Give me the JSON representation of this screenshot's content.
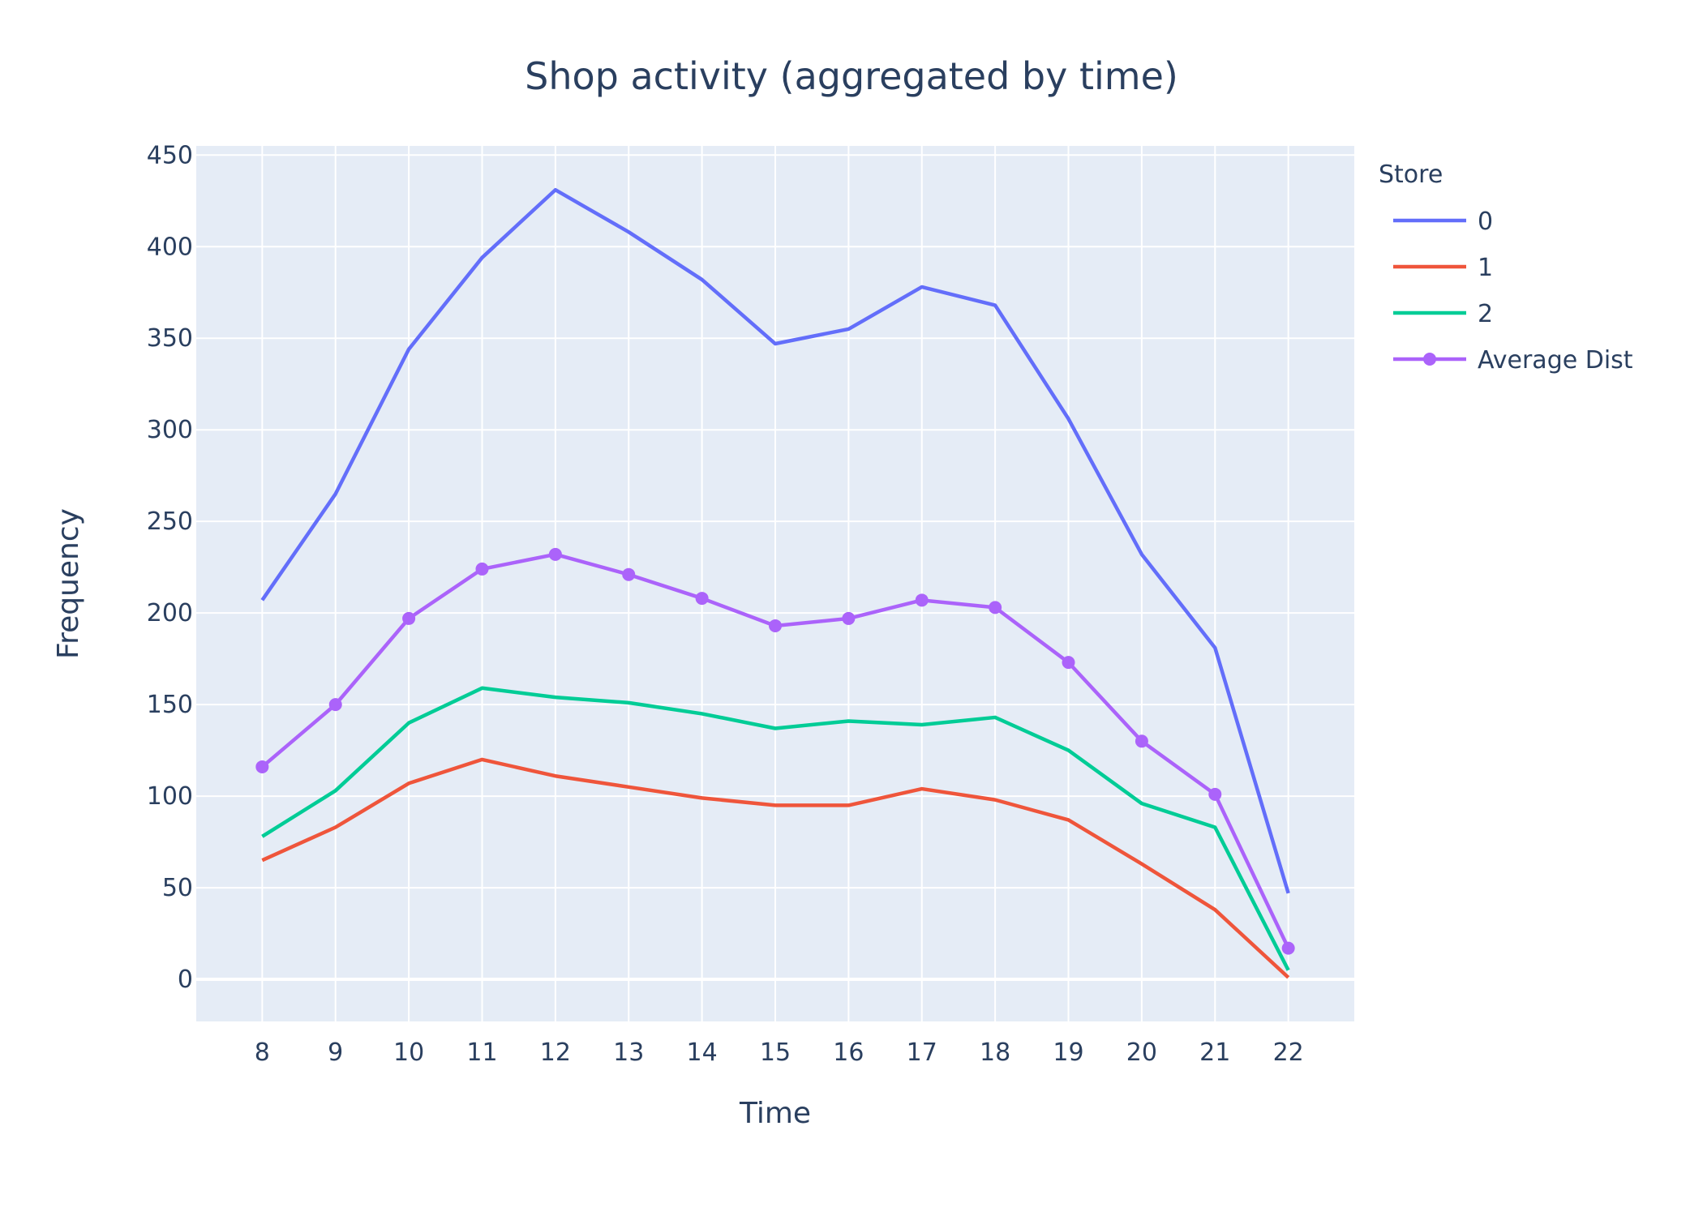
{
  "chart_data": {
    "type": "line",
    "title": "Shop activity (aggregated by time)",
    "xlabel": "Time",
    "ylabel": "Frequency",
    "x": [
      8,
      9,
      10,
      11,
      12,
      13,
      14,
      15,
      16,
      17,
      18,
      19,
      20,
      21,
      22
    ],
    "xlim": [
      7.1,
      22.9
    ],
    "ylim": [
      -23,
      455
    ],
    "yticks": [
      0,
      50,
      100,
      150,
      200,
      250,
      300,
      350,
      400,
      450
    ],
    "legend_title": "Store",
    "legend_position": "top-right",
    "grid": true,
    "series": [
      {
        "name": "0",
        "color": "#636efa",
        "markers": false,
        "values": [
          207,
          265,
          344,
          394,
          431,
          408,
          382,
          347,
          355,
          378,
          368,
          306,
          232,
          181,
          47
        ]
      },
      {
        "name": "1",
        "color": "#ef553b",
        "markers": false,
        "values": [
          65,
          83,
          107,
          120,
          111,
          105,
          99,
          95,
          95,
          104,
          98,
          87,
          63,
          38,
          1
        ]
      },
      {
        "name": "2",
        "color": "#00cc96",
        "markers": false,
        "values": [
          78,
          103,
          140,
          159,
          154,
          151,
          145,
          137,
          141,
          139,
          143,
          125,
          96,
          83,
          5
        ]
      },
      {
        "name": "Average Dist",
        "color": "#ab63fa",
        "markers": true,
        "values": [
          116,
          150,
          197,
          224,
          232,
          221,
          208,
          193,
          197,
          207,
          203,
          173,
          130,
          101,
          17
        ]
      }
    ]
  }
}
